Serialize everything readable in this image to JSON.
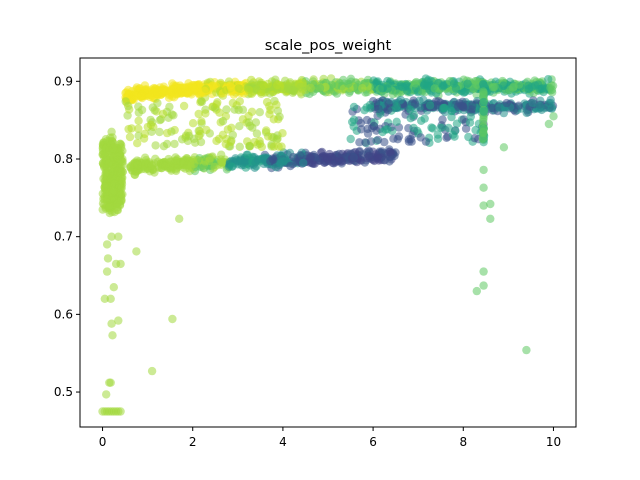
{
  "chart_data": {
    "type": "scatter",
    "title": "scale_pos_weight",
    "xlabel": "",
    "ylabel": "",
    "xlim": [
      -0.5,
      10.5
    ],
    "ylim": [
      0.455,
      0.93
    ],
    "x_ticks": [
      0,
      2,
      4,
      6,
      8,
      10
    ],
    "y_ticks": [
      0.5,
      0.6,
      0.7,
      0.8,
      0.9
    ],
    "x_tick_labels": [
      "0",
      "2",
      "4",
      "6",
      "8",
      "10"
    ],
    "y_tick_labels": [
      "0.5",
      "0.6",
      "0.7",
      "0.8",
      "0.9"
    ],
    "grid": false,
    "legend": "none",
    "colormap": "viridis",
    "colors": {
      "yellow": "#f3e51e",
      "yellow_green": "#b8de29",
      "light_green": "#a2d83e",
      "green": "#5ec962",
      "teal_green": "#21a585",
      "teal": "#22908c",
      "blue": "#3b528b",
      "purple_blue": "#414487"
    },
    "clusters": [
      {
        "name_hint": "upper band",
        "x_range": [
          0.5,
          10
        ],
        "y_center": 0.888,
        "y_spread": 0.015,
        "count": 900
      },
      {
        "name_hint": "lower band",
        "x_range": [
          0.5,
          6.5
        ],
        "y_center": 0.795,
        "y_spread": 0.012,
        "count": 500
      },
      {
        "name_hint": "low x vertical",
        "x_range": [
          0.0,
          0.5
        ],
        "y_center": 0.76,
        "y_spread": 0.05,
        "count": 260
      }
    ],
    "points": [
      [
        0.0,
        0.475
      ],
      [
        0.05,
        0.475
      ],
      [
        0.1,
        0.475
      ],
      [
        0.15,
        0.475
      ],
      [
        0.2,
        0.475
      ],
      [
        0.25,
        0.475
      ],
      [
        0.3,
        0.475
      ],
      [
        0.35,
        0.475
      ],
      [
        0.4,
        0.475
      ],
      [
        0.08,
        0.497
      ],
      [
        0.15,
        0.512
      ],
      [
        0.18,
        0.512
      ],
      [
        1.1,
        0.527
      ],
      [
        9.4,
        0.554
      ],
      [
        0.22,
        0.573
      ],
      [
        0.2,
        0.588
      ],
      [
        0.35,
        0.592
      ],
      [
        1.55,
        0.594
      ],
      [
        0.05,
        0.62
      ],
      [
        0.18,
        0.62
      ],
      [
        0.25,
        0.635
      ],
      [
        8.3,
        0.63
      ],
      [
        8.45,
        0.637
      ],
      [
        8.45,
        0.655
      ],
      [
        0.1,
        0.655
      ],
      [
        0.3,
        0.665
      ],
      [
        0.4,
        0.665
      ],
      [
        0.12,
        0.672
      ],
      [
        0.75,
        0.681
      ],
      [
        0.1,
        0.69
      ],
      [
        0.2,
        0.7
      ],
      [
        0.35,
        0.7
      ],
      [
        1.7,
        0.723
      ],
      [
        8.6,
        0.723
      ],
      [
        8.45,
        0.74
      ],
      [
        8.6,
        0.742
      ],
      [
        8.45,
        0.763
      ],
      [
        8.45,
        0.786
      ],
      [
        9.9,
        0.845
      ],
      [
        10.0,
        0.855
      ],
      [
        8.9,
        0.815
      ],
      [
        0.2,
        0.835
      ],
      [
        0.8,
        0.83
      ]
    ]
  }
}
